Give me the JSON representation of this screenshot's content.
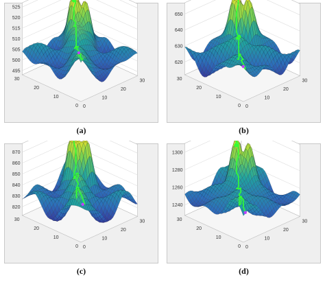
{
  "figure": {
    "panels": [
      {
        "id": "a",
        "caption": "(a)"
      },
      {
        "id": "b",
        "caption": "(b)"
      },
      {
        "id": "c",
        "caption": "(c)"
      },
      {
        "id": "d",
        "caption": "(d)"
      }
    ]
  },
  "chart_data": [
    {
      "type": "surface",
      "zticks": [
        "495",
        "500",
        "505",
        "510",
        "515",
        "520",
        "525"
      ],
      "zlim": [
        493,
        527
      ],
      "xticks": [
        "0",
        "10",
        "20",
        "30"
      ],
      "yticks": [
        "0",
        "10",
        "20",
        "30"
      ],
      "surface_colormap": [
        "#3b1c8c",
        "#2c6fbb",
        "#20a4a0",
        "#7cd250",
        "#fde725"
      ],
      "path_color": "#33ff33",
      "grid": true
    },
    {
      "type": "surface",
      "zticks": [
        "620",
        "630",
        "640",
        "650"
      ],
      "zlim": [
        612,
        657
      ],
      "xticks": [
        "0",
        "10",
        "20",
        "30"
      ],
      "yticks": [
        "0",
        "10",
        "20",
        "30"
      ],
      "surface_colormap": [
        "#3b1c8c",
        "#2c6fbb",
        "#20a4a0",
        "#7cd250",
        "#fde725"
      ],
      "path_color": "#33ff33",
      "grid": true
    },
    {
      "type": "surface",
      "zticks": [
        "820",
        "830",
        "840",
        "850",
        "860",
        "870"
      ],
      "zlim": [
        812,
        878
      ],
      "xticks": [
        "0",
        "10",
        "20",
        "30"
      ],
      "yticks": [
        "0",
        "10",
        "20",
        "30"
      ],
      "surface_colormap": [
        "#3b1c8c",
        "#2c6fbb",
        "#20a4a0",
        "#7cd250",
        "#fde725"
      ],
      "path_color": "#33ff33",
      "grid": true
    },
    {
      "type": "surface",
      "zticks": [
        "1240",
        "1260",
        "1280",
        "1300"
      ],
      "zlim": [
        1228,
        1310
      ],
      "xticks": [
        "0",
        "10",
        "20",
        "30"
      ],
      "yticks": [
        "0",
        "10",
        "20",
        "30"
      ],
      "surface_colormap": [
        "#3b1c8c",
        "#2c6fbb",
        "#20a4a0",
        "#7cd250",
        "#fde725"
      ],
      "path_color": "#33ff33",
      "grid": true
    }
  ]
}
